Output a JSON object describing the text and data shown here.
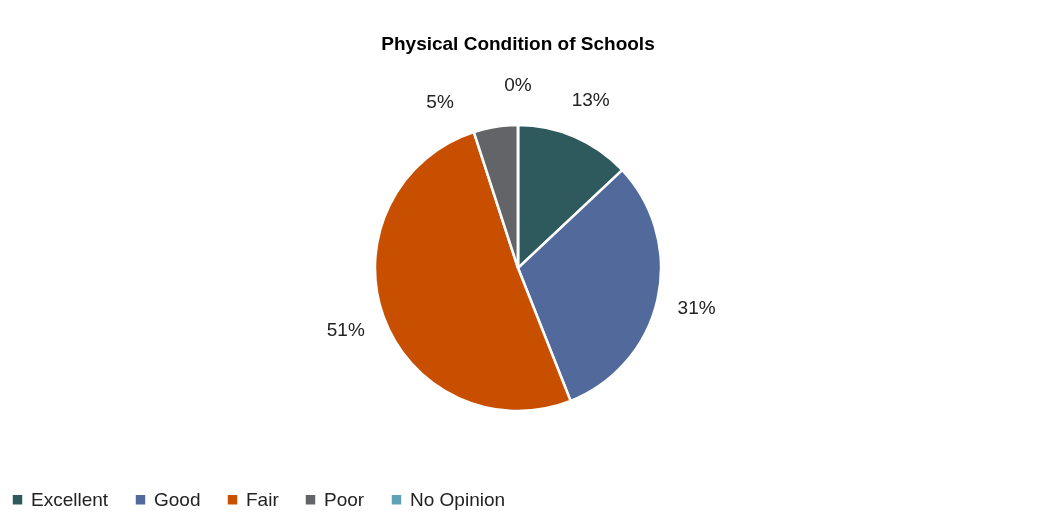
{
  "chart_data": {
    "type": "pie",
    "title": "Physical Condition of Schools",
    "categories": [
      "Excellent",
      "Good",
      "Fair",
      "Poor",
      "No Opinion"
    ],
    "values": [
      13,
      31,
      51,
      5,
      0
    ],
    "colors": [
      "#2e5a5e",
      "#51699b",
      "#c84e00",
      "#626468",
      "#5fa2b5"
    ],
    "value_labels": [
      "13%",
      "31%",
      "51%",
      "5%",
      "0%"
    ],
    "legend": "bottom"
  }
}
